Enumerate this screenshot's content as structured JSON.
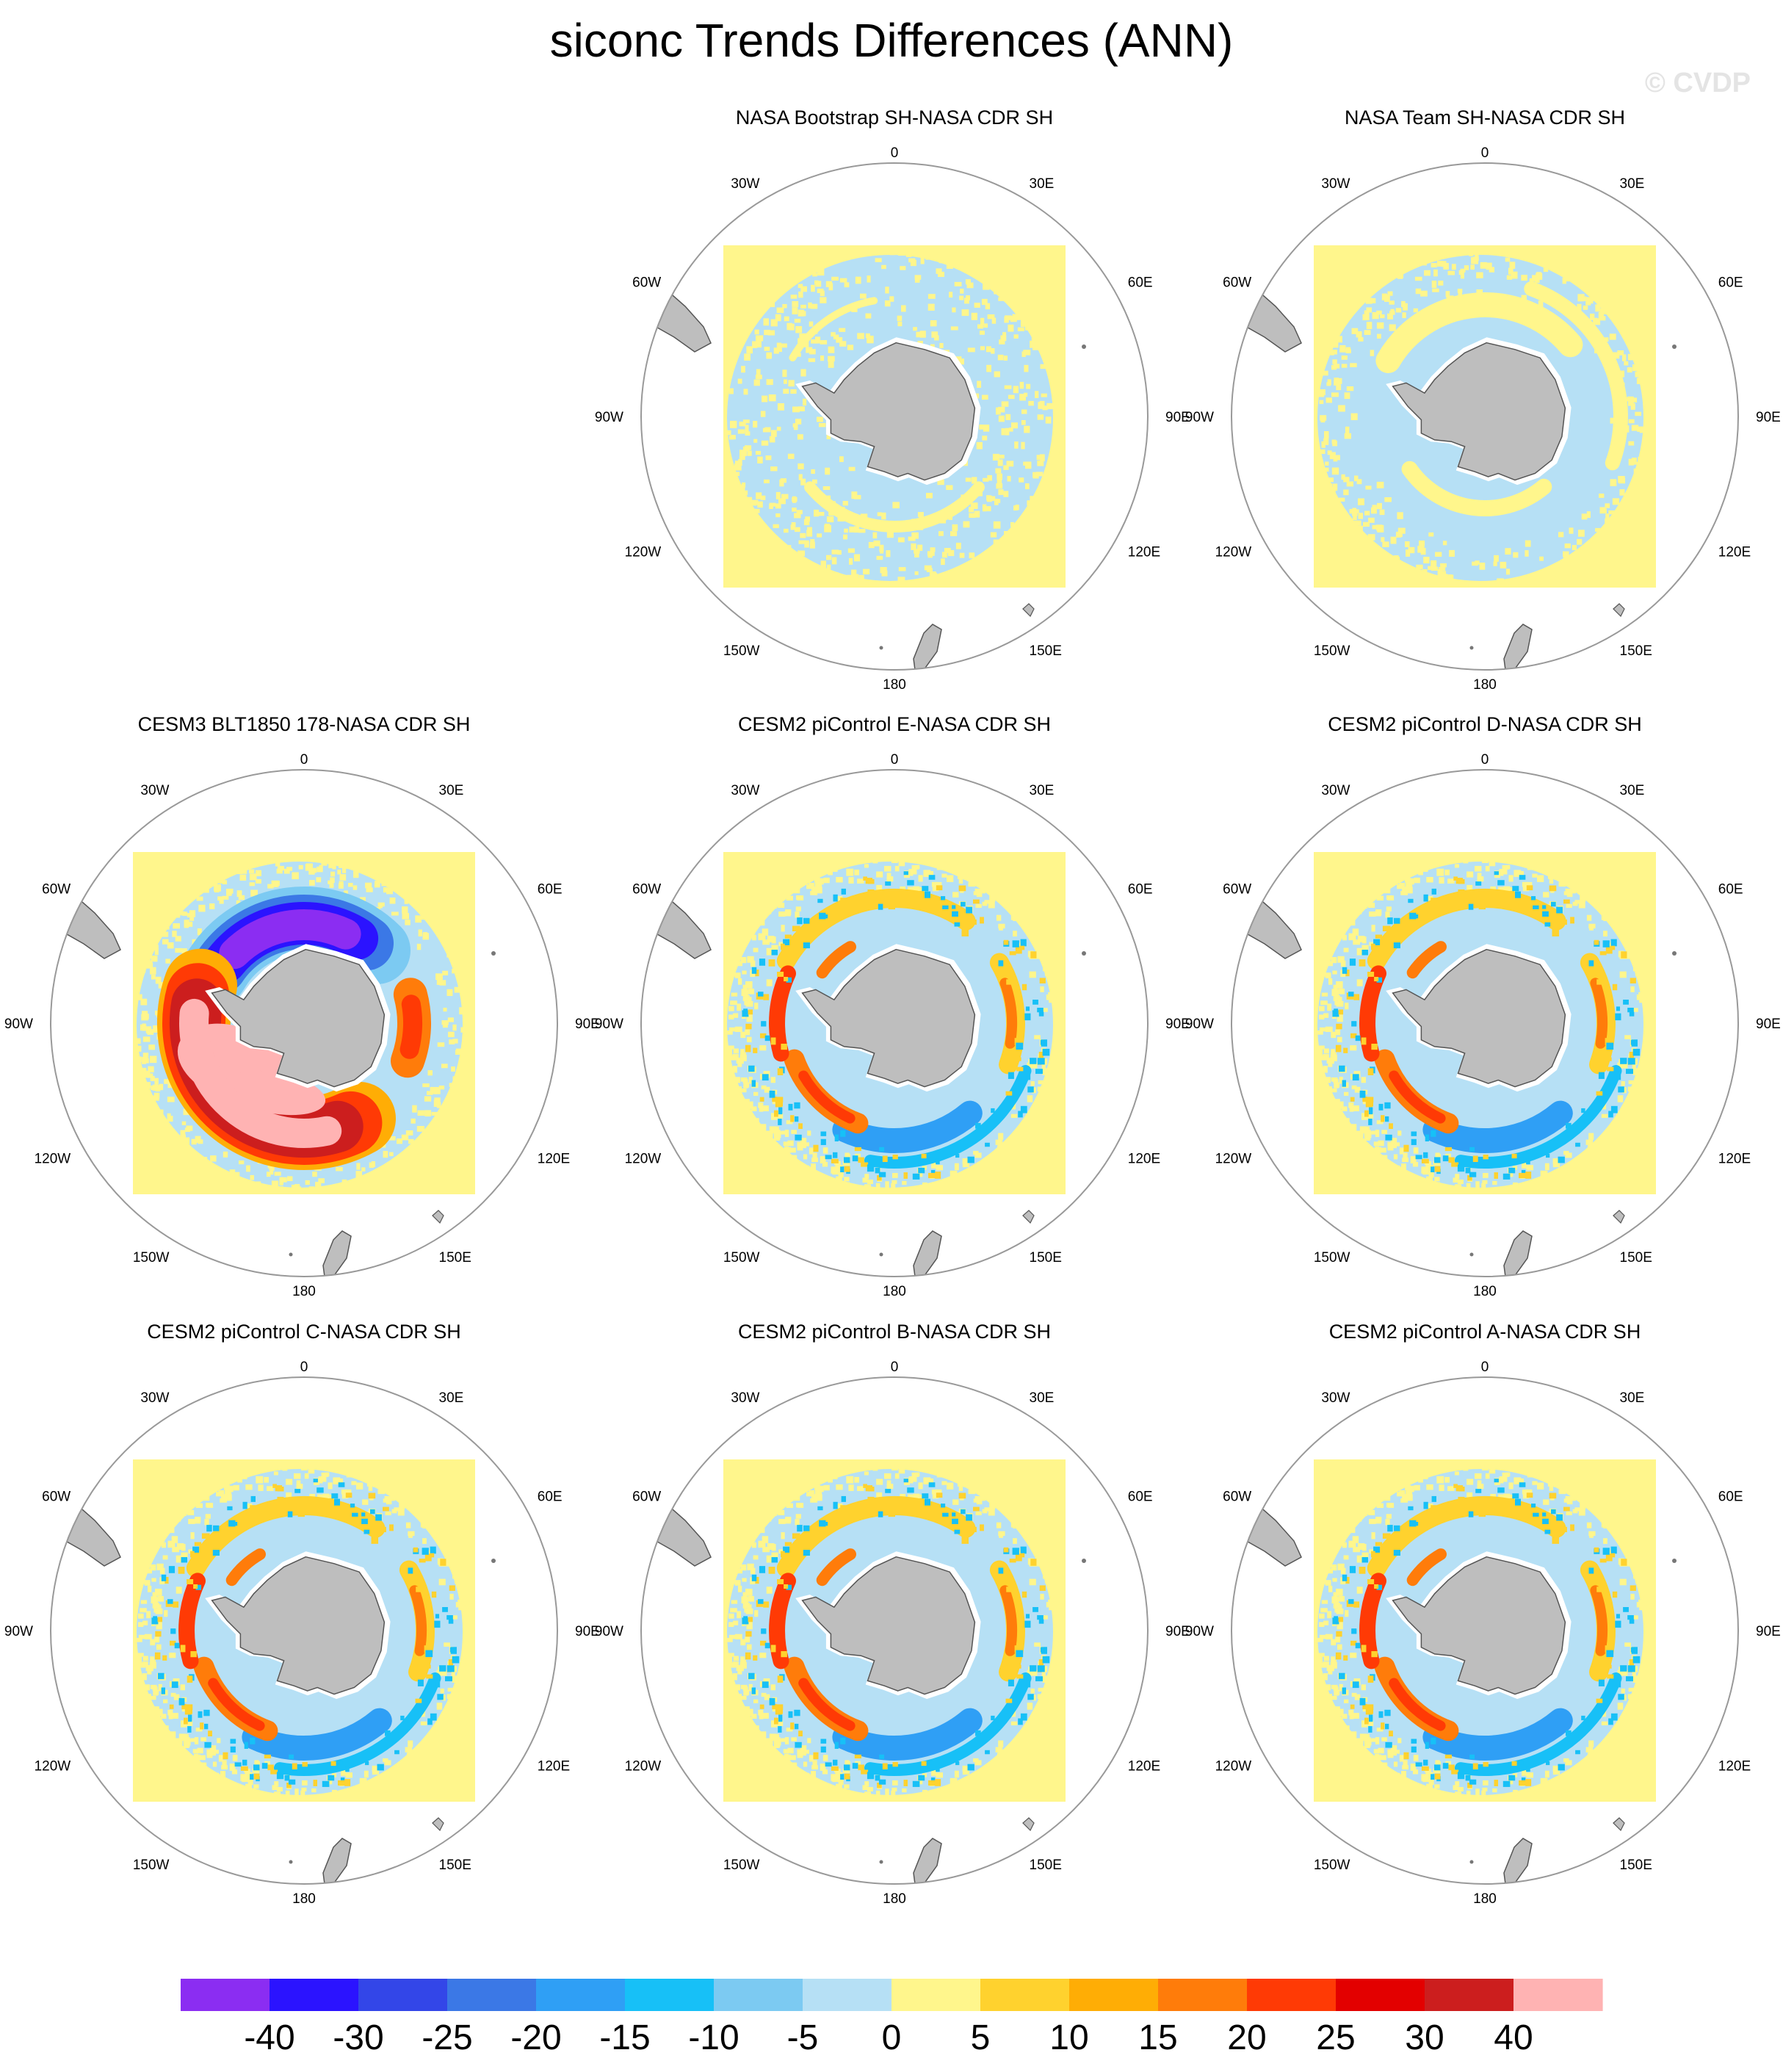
{
  "figure": {
    "title": "siconc Trends Differences (ANN)",
    "watermark": "© CVDP"
  },
  "meridian_labels": [
    "0",
    "30E",
    "60E",
    "90E",
    "120E",
    "150E",
    "180",
    "150W",
    "120W",
    "90W",
    "60W",
    "30W"
  ],
  "panels": [
    {
      "title": "NASA Bootstrap SH-NASA CDR SH",
      "pattern": "bootstrap"
    },
    {
      "title": "NASA Team SH-NASA CDR SH",
      "pattern": "team"
    },
    {
      "title": "CESM3 BLT1850 178-NASA CDR SH",
      "pattern": "cesm3"
    },
    {
      "title": "CESM2 piControl E-NASA CDR SH",
      "pattern": "cesm2"
    },
    {
      "title": "CESM2 piControl D-NASA CDR SH",
      "pattern": "cesm2"
    },
    {
      "title": "CESM2 piControl C-NASA CDR SH",
      "pattern": "cesm2"
    },
    {
      "title": "CESM2 piControl B-NASA CDR SH",
      "pattern": "cesm2"
    },
    {
      "title": "CESM2 piControl A-NASA CDR SH",
      "pattern": "cesm2"
    }
  ],
  "colorbar": {
    "labels": [
      "-40",
      "-30",
      "-25",
      "-20",
      "-15",
      "-10",
      "-5",
      "0",
      "5",
      "10",
      "15",
      "20",
      "25",
      "30",
      "40"
    ],
    "colors": [
      "#8b2df2",
      "#2b13ff",
      "#3346e8",
      "#3b78e6",
      "#2f9ff5",
      "#17c0f7",
      "#7ccaf2",
      "#b6e0f5",
      "#fff68c",
      "#ffd22e",
      "#ffad05",
      "#ff7c0a",
      "#ff3a05",
      "#e30000",
      "#cc1e1e",
      "#ffb3b3"
    ]
  },
  "map_colors": {
    "land": "#bebebe",
    "ocean_background": "#fff68c",
    "frame": "#999999"
  }
}
